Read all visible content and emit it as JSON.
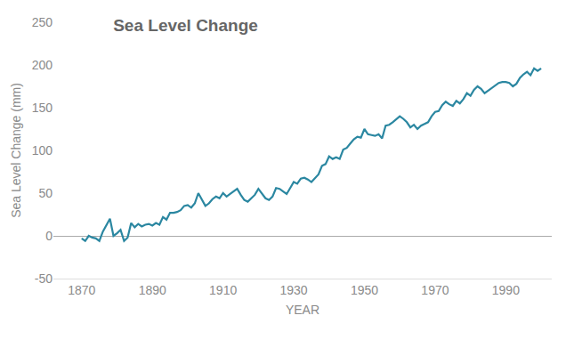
{
  "chart_data": {
    "type": "line",
    "title": "Sea Level Change",
    "x_label": "YEAR",
    "y_label": "Sea Level Change (mm)",
    "x": [
      1870,
      1871,
      1872,
      1873,
      1874,
      1875,
      1876,
      1877,
      1878,
      1879,
      1880,
      1881,
      1882,
      1883,
      1884,
      1885,
      1886,
      1887,
      1888,
      1889,
      1890,
      1891,
      1892,
      1893,
      1894,
      1895,
      1896,
      1897,
      1898,
      1899,
      1900,
      1901,
      1902,
      1903,
      1904,
      1905,
      1906,
      1907,
      1908,
      1909,
      1910,
      1911,
      1912,
      1913,
      1914,
      1915,
      1916,
      1917,
      1918,
      1919,
      1920,
      1921,
      1922,
      1923,
      1924,
      1925,
      1926,
      1927,
      1928,
      1929,
      1930,
      1931,
      1932,
      1933,
      1934,
      1935,
      1936,
      1937,
      1938,
      1939,
      1940,
      1941,
      1942,
      1943,
      1944,
      1945,
      1946,
      1947,
      1948,
      1949,
      1950,
      1951,
      1952,
      1953,
      1954,
      1955,
      1956,
      1957,
      1958,
      1959,
      1960,
      1961,
      1962,
      1963,
      1964,
      1965,
      1966,
      1967,
      1968,
      1969,
      1970,
      1971,
      1972,
      1973,
      1974,
      1975,
      1976,
      1977,
      1978,
      1979,
      1980,
      1981,
      1982,
      1983,
      1984,
      1985,
      1986,
      1987,
      1988,
      1989,
      1990,
      1991,
      1992,
      1993,
      1994,
      1995,
      1996,
      1997,
      1998,
      1999,
      2000
    ],
    "values": [
      -3,
      -6,
      0,
      -2,
      -3,
      -6,
      5,
      12,
      20,
      0,
      3,
      7,
      -6,
      -2,
      15,
      10,
      14,
      11,
      13,
      14,
      12,
      15,
      13,
      22,
      19,
      27,
      27,
      28,
      30,
      35,
      36,
      33,
      38,
      50,
      42,
      35,
      38,
      43,
      46,
      44,
      50,
      46,
      49,
      52,
      55,
      48,
      42,
      40,
      44,
      48,
      55,
      49,
      44,
      42,
      46,
      56,
      55,
      52,
      49,
      56,
      63,
      61,
      67,
      68,
      66,
      63,
      67,
      72,
      82,
      84,
      93,
      90,
      92,
      90,
      101,
      103,
      108,
      113,
      116,
      115,
      125,
      119,
      118,
      117,
      119,
      114,
      129,
      130,
      133,
      137,
      140,
      137,
      133,
      127,
      130,
      125,
      129,
      131,
      133,
      140,
      145,
      146,
      153,
      157,
      154,
      152,
      158,
      155,
      160,
      167,
      164,
      171,
      175,
      172,
      167,
      170,
      173,
      176,
      179,
      180,
      180,
      179,
      175,
      178,
      185,
      189,
      192,
      188,
      196,
      193,
      196
    ],
    "color": "#2b87a1",
    "xlim": [
      1862,
      2003
    ],
    "xticks": [
      1870,
      1890,
      1910,
      1930,
      1950,
      1970,
      1990
    ],
    "ylim": [
      -50,
      250
    ],
    "yticks": [
      -50,
      0,
      50,
      100,
      150,
      200,
      250
    ],
    "grid": false
  }
}
